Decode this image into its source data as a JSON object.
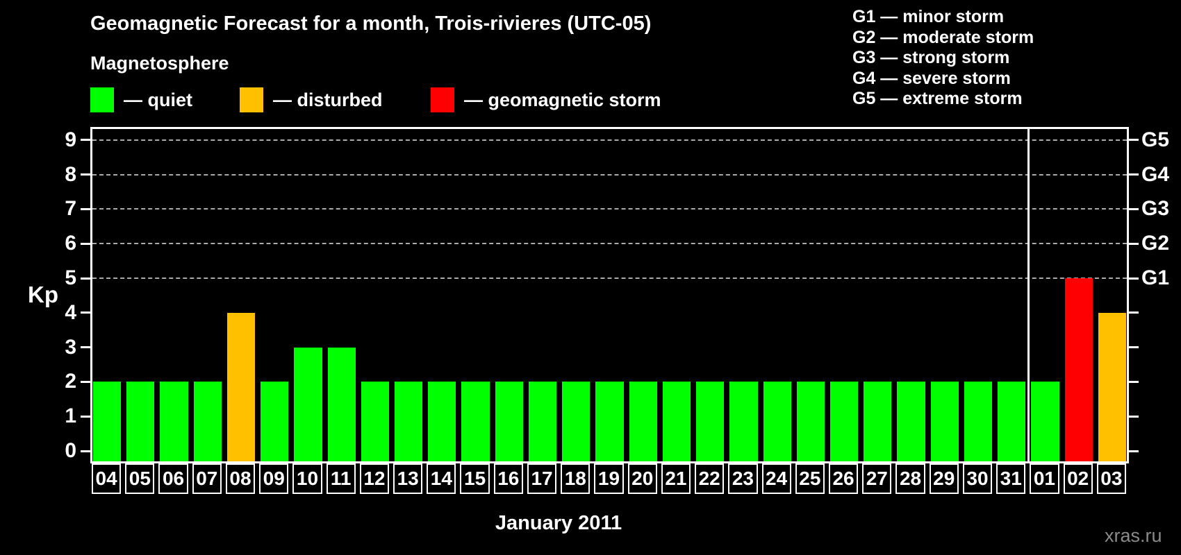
{
  "header": {
    "title": "Geomagnetic Forecast for a month, Trois-rivieres (UTC-05)",
    "subtitle": "Magnetosphere"
  },
  "legend": [
    {
      "key": "quiet",
      "label": "— quiet",
      "color": "#00ff00"
    },
    {
      "key": "disturbed",
      "label": "— disturbed",
      "color": "#ffc000"
    },
    {
      "key": "storm",
      "label": "— geomagnetic storm",
      "color": "#ff0000"
    }
  ],
  "g_scale_legend": [
    "G1 — minor storm",
    "G2 — moderate storm",
    "G3 — strong storm",
    "G4 — severe storm",
    "G5 — extreme storm"
  ],
  "y_axis": {
    "label": "Kp",
    "ticks": [
      0,
      1,
      2,
      3,
      4,
      5,
      6,
      7,
      8,
      9
    ]
  },
  "right_axis": {
    "labels": [
      {
        "text": "G5",
        "kp": 9
      },
      {
        "text": "G4",
        "kp": 8
      },
      {
        "text": "G3",
        "kp": 7
      },
      {
        "text": "G2",
        "kp": 6
      },
      {
        "text": "G1",
        "kp": 5
      }
    ]
  },
  "x_axis": {
    "label": "January 2011"
  },
  "watermark": "xras.ru",
  "colors": {
    "background": "#000000",
    "text": "#ffffff",
    "frame": "#ffffff",
    "gridline": "#ababab",
    "watermark": "#8a8a8a",
    "quiet": "#00ff00",
    "disturbed": "#ffc000",
    "storm": "#ff0000"
  },
  "chart_data": {
    "type": "bar",
    "title": "Geomagnetic Forecast for a month, Trois-rivieres (UTC-05)",
    "xlabel": "January 2011",
    "ylabel": "Kp",
    "ylim": [
      0,
      9.4
    ],
    "yticks": [
      0,
      1,
      2,
      3,
      4,
      5,
      6,
      7,
      8,
      9
    ],
    "grid_kp": [
      5,
      6,
      7,
      8,
      9
    ],
    "grid_style": "horizontal dashed lines at Kp 5-9 (G1-G5 levels)",
    "legend_position": "top",
    "month_boundary_index": 28,
    "categories": [
      "04",
      "05",
      "06",
      "07",
      "08",
      "09",
      "10",
      "11",
      "12",
      "13",
      "14",
      "15",
      "16",
      "17",
      "18",
      "19",
      "20",
      "21",
      "22",
      "23",
      "24",
      "25",
      "26",
      "27",
      "28",
      "29",
      "30",
      "31",
      "01",
      "02",
      "03"
    ],
    "values": [
      2,
      2,
      2,
      2,
      4,
      2,
      3,
      3,
      2,
      2,
      2,
      2,
      2,
      2,
      2,
      2,
      2,
      2,
      2,
      2,
      2,
      2,
      2,
      2,
      2,
      2,
      2,
      2,
      2,
      5,
      4
    ],
    "states": [
      "quiet",
      "quiet",
      "quiet",
      "quiet",
      "disturbed",
      "quiet",
      "quiet",
      "quiet",
      "quiet",
      "quiet",
      "quiet",
      "quiet",
      "quiet",
      "quiet",
      "quiet",
      "quiet",
      "quiet",
      "quiet",
      "quiet",
      "quiet",
      "quiet",
      "quiet",
      "quiet",
      "quiet",
      "quiet",
      "quiet",
      "quiet",
      "quiet",
      "quiet",
      "storm",
      "disturbed"
    ],
    "g_level_map": {
      "G1": 5,
      "G2": 6,
      "G3": 7,
      "G4": 8,
      "G5": 9
    }
  }
}
